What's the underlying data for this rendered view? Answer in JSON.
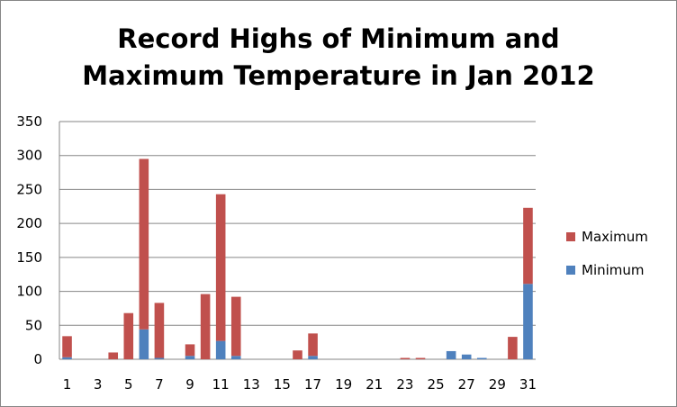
{
  "chart_data": {
    "type": "bar",
    "stacked": true,
    "title_lines": [
      "Record Highs of Minimum and",
      "Maximum Temperature in Jan 2012"
    ],
    "xlabel": "",
    "ylabel": "",
    "ylim": [
      0,
      350
    ],
    "yticks": [
      0,
      50,
      100,
      150,
      200,
      250,
      300,
      350
    ],
    "grid": true,
    "legend_position": "right",
    "categories": [
      "1",
      "2",
      "3",
      "4",
      "5",
      "6",
      "7",
      "8",
      "9",
      "10",
      "11",
      "12",
      "13",
      "14",
      "15",
      "16",
      "17",
      "18",
      "19",
      "20",
      "21",
      "22",
      "23",
      "24",
      "25",
      "26",
      "27",
      "28",
      "29",
      "30",
      "31"
    ],
    "x_tick_labels": [
      "1",
      "",
      "3",
      "",
      "5",
      "",
      "7",
      "",
      "9",
      "",
      "11",
      "",
      "13",
      "",
      "15",
      "",
      "17",
      "",
      "19",
      "",
      "21",
      "",
      "23",
      "",
      "25",
      "",
      "27",
      "",
      "29",
      "",
      "31"
    ],
    "series": [
      {
        "name": "Minimum",
        "color": "#4f81bd",
        "values": [
          3,
          0,
          0,
          0,
          0,
          44,
          2,
          0,
          5,
          0,
          27,
          5,
          0,
          0,
          0,
          0,
          5,
          0,
          0,
          0,
          0,
          0,
          0,
          0,
          0,
          12,
          7,
          2,
          0,
          0,
          111
        ]
      },
      {
        "name": "Maximum",
        "color": "#c0504d",
        "values": [
          31,
          0,
          0,
          10,
          68,
          251,
          81,
          0,
          17,
          96,
          216,
          87,
          0,
          0,
          0,
          13,
          33,
          0,
          0,
          0,
          0,
          0,
          2,
          2,
          0,
          0,
          0,
          0,
          0,
          33,
          112
        ]
      }
    ],
    "legend_order": [
      "Maximum",
      "Minimum"
    ]
  }
}
